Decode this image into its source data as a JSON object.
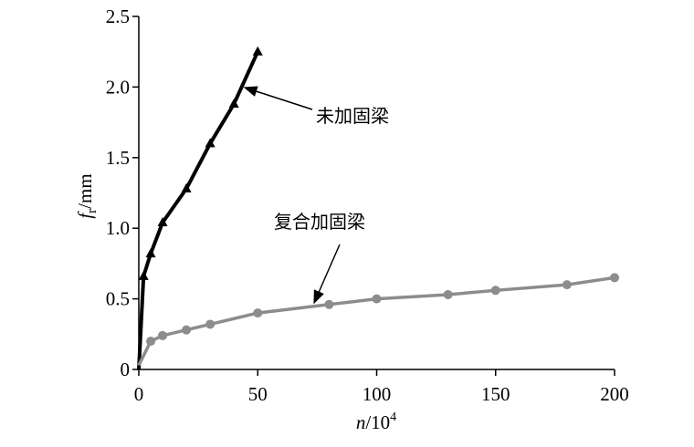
{
  "chart_data": {
    "type": "line",
    "ylabel": {
      "italic": "f",
      "sub": "r",
      "rest": "/mm"
    },
    "xlabel": {
      "italic": "n",
      "rest": "/10",
      "sup": "4"
    },
    "annotations": [
      "未加固梁",
      "复合加固梁"
    ],
    "xlim": [
      0,
      200
    ],
    "xticks": [
      0,
      50,
      100,
      150,
      200
    ],
    "ylim": [
      0,
      2.5
    ],
    "yticks": [
      0,
      0.5,
      {
        "value": 1,
        "label": "1.0"
      },
      1.5,
      {
        "value": 2,
        "label": "2.0"
      },
      2.5
    ],
    "series": [
      {
        "color": "#000000",
        "marker": "triangle",
        "x": [
          0,
          2,
          5,
          10,
          20,
          30,
          40,
          50
        ],
        "values": [
          0,
          0.66,
          0.82,
          1.04,
          1.28,
          1.6,
          1.88,
          2.25
        ]
      },
      {
        "color": "#8c8c8c",
        "marker": "circle",
        "x": [
          0,
          5,
          10,
          20,
          30,
          50,
          80,
          100,
          130,
          150,
          180,
          200
        ],
        "values": [
          0.03,
          0.2,
          0.24,
          0.28,
          0.32,
          0.4,
          0.46,
          0.5,
          0.53,
          0.56,
          0.6,
          0.65
        ]
      }
    ]
  }
}
